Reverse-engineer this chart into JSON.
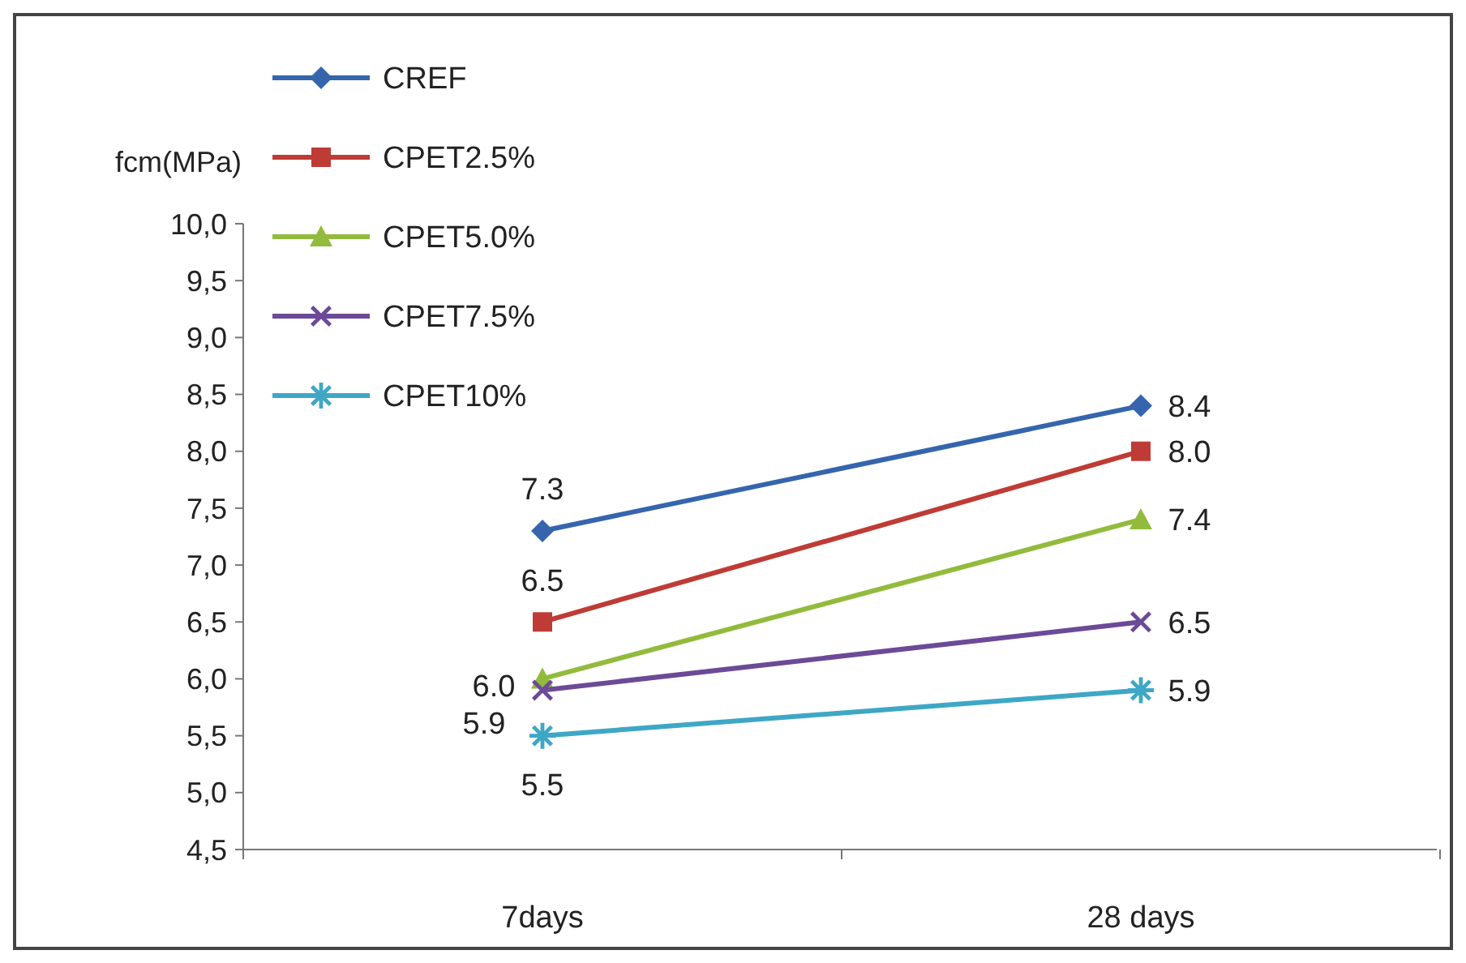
{
  "chart_data": {
    "type": "line",
    "ylabel": "fcm(MPa)",
    "categories": [
      "7days",
      "28 days"
    ],
    "series": [
      {
        "name": "CREF",
        "color": "#3565ad",
        "marker": "diamond",
        "values": [
          7.3,
          8.4
        ]
      },
      {
        "name": "CPET2.5%",
        "color": "#bf3b35",
        "marker": "square",
        "values": [
          6.5,
          8.0
        ]
      },
      {
        "name": "CPET5.0%",
        "color": "#92bb3d",
        "marker": "triangle",
        "values": [
          6.0,
          7.4
        ]
      },
      {
        "name": "CPET7.5%",
        "color": "#6c4a97",
        "marker": "cross",
        "values": [
          5.9,
          6.5
        ]
      },
      {
        "name": "CPET10%",
        "color": "#3ea7c6",
        "marker": "star",
        "values": [
          5.5,
          5.9
        ]
      }
    ],
    "ylim": [
      4.5,
      10.0
    ],
    "yticks": [
      {
        "value": 4.5,
        "label": "4,5"
      },
      {
        "value": 5,
        "label": "5,0"
      },
      {
        "value": 5.5,
        "label": "5,5"
      },
      {
        "value": 6,
        "label": "6,0"
      },
      {
        "value": 6.5,
        "label": "6,5"
      },
      {
        "value": 7,
        "label": "7,0"
      },
      {
        "value": 7.5,
        "label": "7,5"
      },
      {
        "value": 8,
        "label": "8,0"
      },
      {
        "value": 8.5,
        "label": "8,5"
      },
      {
        "value": 9,
        "label": "9,0"
      },
      {
        "value": 9.5,
        "label": "9,5"
      },
      {
        "value": 10,
        "label": "10,0"
      }
    ],
    "value_labels": [
      [
        "7.3",
        "8.4"
      ],
      [
        "6.5",
        "8.0"
      ],
      [
        "6.0",
        "7.4"
      ],
      [
        "5.9",
        "6.5"
      ],
      [
        "5.5",
        "5.9"
      ]
    ],
    "legend": "top left",
    "grid": false,
    "line_style": "solid"
  }
}
